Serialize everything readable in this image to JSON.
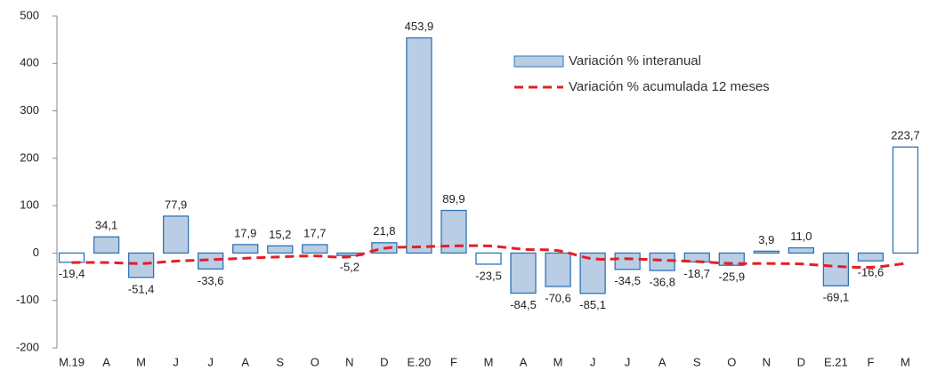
{
  "chart_data": {
    "type": "bar",
    "categories": [
      "M.19",
      "A",
      "M",
      "J",
      "J",
      "A",
      "S",
      "O",
      "N",
      "D",
      "E.20",
      "F",
      "M",
      "A",
      "M",
      "J",
      "J",
      "A",
      "S",
      "O",
      "N",
      "D",
      "E.21",
      "F",
      "M"
    ],
    "series": [
      {
        "name": "Variación % interanual",
        "type": "bar",
        "color": "#b9cde5",
        "edge_color": "#2e75b6",
        "point_colors": [
          "#ffffff",
          "#b9cde5",
          "#b9cde5",
          "#b9cde5",
          "#b9cde5",
          "#b9cde5",
          "#b9cde5",
          "#b9cde5",
          "#b9cde5",
          "#b9cde5",
          "#b9cde5",
          "#b9cde5",
          "#ffffff",
          "#b9cde5",
          "#b9cde5",
          "#b9cde5",
          "#b9cde5",
          "#b9cde5",
          "#b9cde5",
          "#b9cde5",
          "#b9cde5",
          "#b9cde5",
          "#b9cde5",
          "#b9cde5",
          "#ffffff"
        ],
        "values": [
          -19.4,
          34.1,
          -51.4,
          77.9,
          -33.6,
          17.9,
          15.2,
          17.7,
          -5.2,
          21.8,
          453.9,
          89.9,
          -23.5,
          -84.5,
          -70.6,
          -85.1,
          -34.5,
          -36.8,
          -18.7,
          -25.9,
          3.9,
          11.0,
          -69.1,
          -16.6,
          223.7
        ],
        "value_labels": [
          "-19,4",
          "34,1",
          "-51,4",
          "77,9",
          "-33,6",
          "17,9",
          "15,2",
          "17,7",
          "-5,2",
          "21,8",
          "453,9",
          "89,9",
          "-23,5",
          "-84,5",
          "-70,6",
          "-85,1",
          "-34,5",
          "-36,8",
          "-18,7",
          "-25,9",
          "3,9",
          "11,0",
          "-69,1",
          "-16,6",
          "223,7"
        ]
      },
      {
        "name": "Variación % acumulada 12 meses",
        "type": "line",
        "color": "#e41e26",
        "dashed": true,
        "values": [
          -20,
          -20,
          -22,
          -17,
          -14,
          -11,
          -8,
          -6,
          -8,
          10,
          13,
          15,
          15,
          8,
          5,
          -12,
          -12,
          -15,
          -18,
          -22,
          -22,
          -23,
          -28,
          -30,
          -22
        ]
      }
    ],
    "ylim": [
      -200,
      500
    ],
    "yticks": [
      -200,
      -100,
      0,
      100,
      200,
      300,
      400,
      500
    ],
    "grid": false
  }
}
